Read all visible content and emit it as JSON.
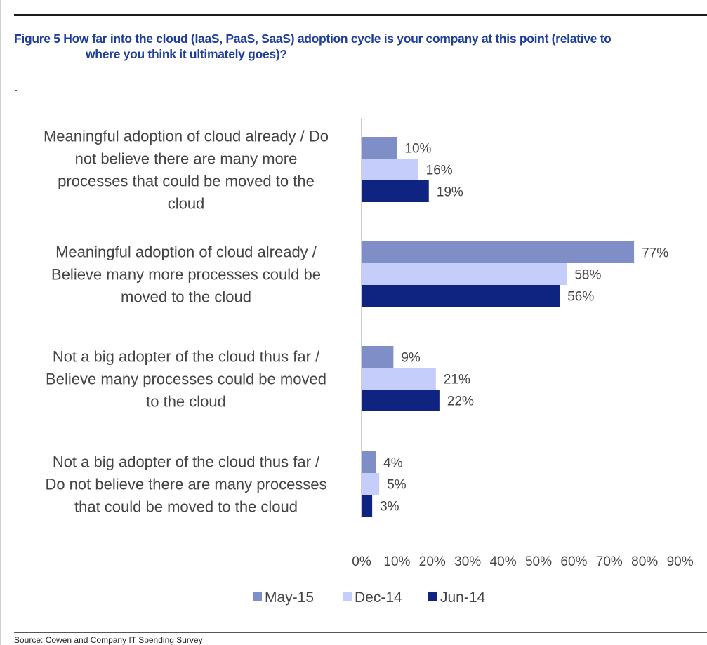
{
  "figure": {
    "title_line1": "Figure 5 How far into the cloud (IaaS, PaaS, SaaS) adoption cycle is your company at this point (relative to",
    "title_line2": "where you think it ultimately goes)?"
  },
  "source": "Source: Cowen and Company IT Spending Survey",
  "colors": {
    "May-15": "#7f8ec7",
    "Dec-14": "#c5cdfb",
    "Jun-14": "#0e2480",
    "text": "#3a3a3a",
    "axis": "#bdbdbd",
    "title": "#1f3e9c"
  },
  "chart_data": {
    "type": "bar",
    "orientation": "horizontal",
    "categories": [
      [
        "Meaningful adoption of cloud already / Do",
        "not believe there are many more",
        "processes that could be moved to the",
        "cloud"
      ],
      [
        "Meaningful adoption of cloud already /",
        "Believe many more processes could be",
        "moved to the cloud"
      ],
      [
        "Not a big adopter of the cloud thus far /",
        "Believe many processes could be moved",
        "to the cloud"
      ],
      [
        "Not a big adopter of the cloud thus far /",
        "Do not believe there are many processes",
        "that could be moved to the cloud"
      ]
    ],
    "series": [
      {
        "name": "May-15",
        "values": [
          10,
          77,
          9,
          4
        ]
      },
      {
        "name": "Dec-14",
        "values": [
          16,
          58,
          21,
          5
        ]
      },
      {
        "name": "Jun-14",
        "values": [
          19,
          56,
          22,
          3
        ]
      }
    ],
    "xlim": [
      0,
      90
    ],
    "xticks": [
      "0%",
      "10%",
      "20%",
      "30%",
      "40%",
      "50%",
      "60%",
      "70%",
      "80%",
      "90%"
    ],
    "value_suffix": "%",
    "legend_position": "bottom",
    "grid": false
  }
}
